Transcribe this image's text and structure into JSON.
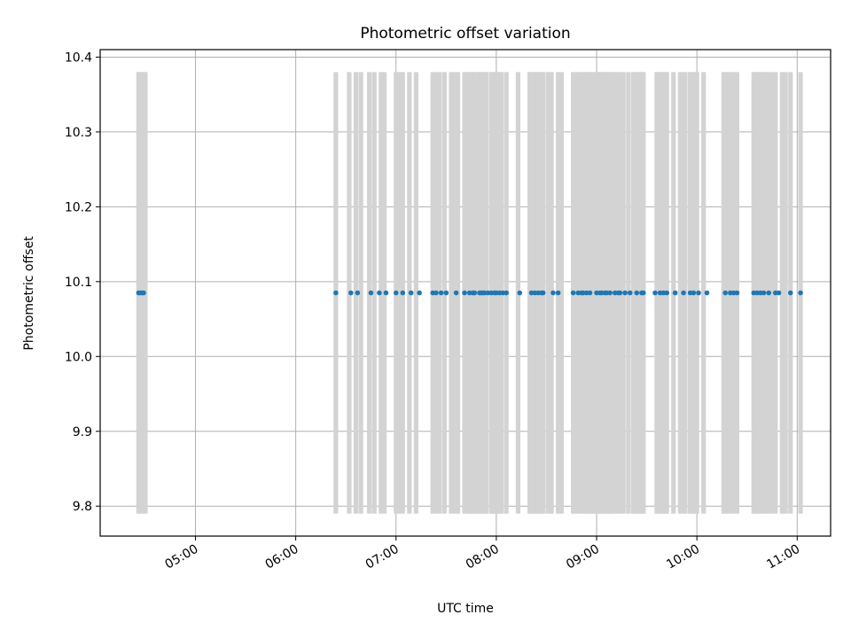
{
  "chart_data": {
    "type": "scatter",
    "title": "Photometric offset variation",
    "xlabel": "UTC time",
    "ylabel": "Photometric offset",
    "xlim": [
      "04:03",
      "11:20"
    ],
    "ylim": [
      9.76,
      10.41
    ],
    "x_ticks": [
      "05:00",
      "06:00",
      "07:00",
      "08:00",
      "09:00",
      "10:00",
      "11:00"
    ],
    "y_ticks": [
      9.8,
      9.9,
      10.0,
      10.1,
      10.2,
      10.3,
      10.4
    ],
    "grid": true,
    "colors": {
      "points": "#1f77b4",
      "bands": "#d3d3d3",
      "grid": "#b0b0b0"
    },
    "bands": {
      "y_range": [
        9.79,
        10.38
      ],
      "x": [
        "04:26",
        "04:27",
        "04:28",
        "04:29",
        "04:30",
        "06:24",
        "06:32",
        "06:36",
        "06:39",
        "06:44",
        "06:47",
        "06:51",
        "06:53",
        "07:00",
        "07:02",
        "07:04",
        "07:08",
        "07:12",
        "07:22",
        "07:24",
        "07:26",
        "07:29",
        "07:33",
        "07:35",
        "07:37",
        "07:41",
        "07:43",
        "07:44",
        "07:45",
        "07:46",
        "07:48",
        "07:49",
        "07:50",
        "07:51",
        "07:52",
        "07:53",
        "07:54",
        "07:57",
        "07:58",
        "07:59",
        "08:00",
        "08:01",
        "08:02",
        "08:03",
        "08:06",
        "08:13",
        "08:20",
        "08:21",
        "08:22",
        "08:23",
        "08:24",
        "08:25",
        "08:26",
        "08:27",
        "08:28",
        "08:31",
        "08:32",
        "08:33",
        "08:37",
        "08:39",
        "08:46",
        "08:47",
        "08:49",
        "08:51",
        "08:52",
        "08:53",
        "08:54",
        "08:55",
        "08:56",
        "08:58",
        "09:00",
        "09:01",
        "09:02",
        "09:03",
        "09:04",
        "09:05",
        "09:06",
        "09:07",
        "09:08",
        "09:09",
        "09:11",
        "09:13",
        "09:14",
        "09:16",
        "09:19",
        "09:22",
        "09:23",
        "09:25",
        "09:26",
        "09:27",
        "09:28",
        "09:36",
        "09:37",
        "09:38",
        "09:39",
        "09:40",
        "09:41",
        "09:42",
        "09:46",
        "09:50",
        "09:51",
        "09:53",
        "09:56",
        "09:57",
        "09:58",
        "10:00",
        "10:04",
        "10:16",
        "10:17",
        "10:19",
        "10:21",
        "10:23",
        "10:24",
        "10:34",
        "10:35",
        "10:36",
        "10:37",
        "10:38",
        "10:39",
        "10:41",
        "10:43",
        "10:45",
        "10:47",
        "10:51",
        "10:53",
        "10:56",
        "11:02"
      ]
    },
    "points": {
      "y": 10.085,
      "x": [
        "04:26",
        "04:27",
        "04:28",
        "04:29",
        "06:24",
        "06:33",
        "06:37",
        "06:45",
        "06:50",
        "06:54",
        "07:00",
        "07:04",
        "07:09",
        "07:14",
        "07:22",
        "07:24",
        "07:27",
        "07:30",
        "07:36",
        "07:41",
        "07:44",
        "07:46",
        "07:47",
        "07:50",
        "07:51",
        "07:52",
        "07:53",
        "07:55",
        "07:57",
        "07:59",
        "08:00",
        "08:02",
        "08:04",
        "08:06",
        "08:14",
        "08:21",
        "08:23",
        "08:25",
        "08:27",
        "08:28",
        "08:34",
        "08:37",
        "08:46",
        "08:49",
        "08:51",
        "08:52",
        "08:54",
        "08:56",
        "09:00",
        "09:02",
        "09:03",
        "09:05",
        "09:06",
        "09:08",
        "09:11",
        "09:13",
        "09:14",
        "09:17",
        "09:20",
        "09:24",
        "09:27",
        "09:28",
        "09:35",
        "09:38",
        "09:40",
        "09:42",
        "09:47",
        "09:52",
        "09:56",
        "09:58",
        "10:01",
        "10:06",
        "10:17",
        "10:20",
        "10:22",
        "10:24",
        "10:34",
        "10:36",
        "10:38",
        "10:40",
        "10:43",
        "10:47",
        "10:49",
        "10:56",
        "11:02"
      ]
    }
  }
}
